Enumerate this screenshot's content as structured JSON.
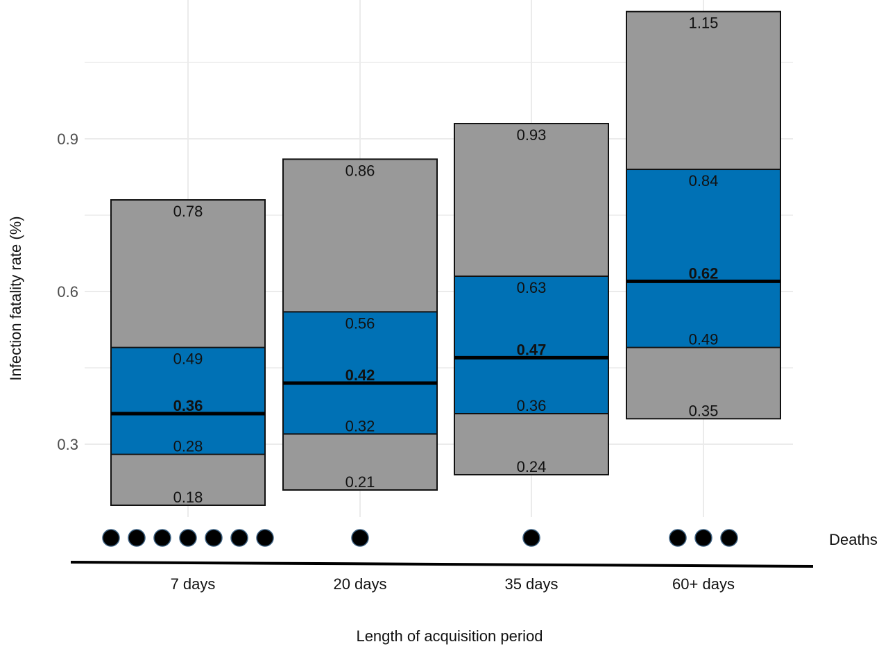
{
  "chart_data": {
    "type": "bar",
    "subtype": "floating-range",
    "categories": [
      "7 days",
      "20 days",
      "35 days",
      "60+ days"
    ],
    "outer_range": {
      "low": [
        0.18,
        0.21,
        0.24,
        0.35
      ],
      "high": [
        0.78,
        0.86,
        0.93,
        1.15
      ],
      "low_labels": [
        "0.18",
        "0.21",
        "0.24",
        "0.35"
      ],
      "high_labels": [
        "0.78",
        "0.86",
        "0.93",
        "1.15"
      ]
    },
    "inner_range": {
      "low": [
        0.28,
        0.32,
        0.36,
        0.49
      ],
      "high": [
        0.49,
        0.56,
        0.63,
        0.84
      ],
      "low_labels": [
        "0.28",
        "0.32",
        "0.36",
        "0.49"
      ],
      "high_labels": [
        "0.49",
        "0.56",
        "0.63",
        "0.84"
      ]
    },
    "median": {
      "values": [
        0.36,
        0.42,
        0.47,
        0.62
      ],
      "labels": [
        "0.36",
        "0.42",
        "0.47",
        "0.62"
      ]
    },
    "deaths": [
      7,
      1,
      1,
      3
    ],
    "deaths_label": "Deaths",
    "xlabel": "Length of acquisition period",
    "ylabel": "Infection fatality rate (%)",
    "yticks": [
      0.3,
      0.6,
      0.9
    ],
    "ytick_labels": [
      "0.3",
      "0.6",
      "0.9"
    ],
    "ylim": [
      0.15,
      1.2
    ],
    "grid": true,
    "colors": {
      "outer": "#999999",
      "inner": "#0071b5",
      "median": "#000000",
      "grid": "#ebebeb",
      "dot": "#000000"
    }
  }
}
